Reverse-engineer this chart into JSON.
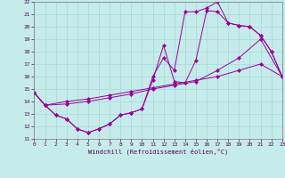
{
  "xlabel": "Windchill (Refroidissement éolien,°C)",
  "xlim": [
    0,
    23
  ],
  "ylim": [
    11,
    22
  ],
  "xticks": [
    0,
    1,
    2,
    3,
    4,
    5,
    6,
    7,
    8,
    9,
    10,
    11,
    12,
    13,
    14,
    15,
    16,
    17,
    18,
    19,
    20,
    21,
    22,
    23
  ],
  "yticks": [
    11,
    12,
    13,
    14,
    15,
    16,
    17,
    18,
    19,
    20,
    21,
    22
  ],
  "bg_color": "#c5ecea",
  "grid_color": "#a8d8d8",
  "line_color": "#990099",
  "curves": [
    {
      "x": [
        0,
        1,
        3,
        5,
        7,
        9,
        11,
        13,
        15,
        17,
        19,
        21,
        23
      ],
      "y": [
        14.7,
        13.7,
        14.0,
        14.2,
        14.5,
        14.8,
        15.1,
        15.4,
        15.7,
        16.0,
        16.5,
        17.0,
        16.0
      ]
    },
    {
      "x": [
        0,
        1,
        3,
        5,
        7,
        9,
        11,
        13,
        15,
        17,
        19,
        21,
        23
      ],
      "y": [
        14.7,
        13.7,
        13.8,
        14.0,
        14.3,
        14.6,
        15.0,
        15.3,
        15.6,
        16.5,
        17.5,
        19.0,
        16.0
      ]
    },
    {
      "x": [
        0,
        1,
        2,
        3,
        4,
        5,
        6,
        7,
        8,
        9,
        10,
        11,
        12,
        13,
        14,
        15,
        16,
        17,
        18,
        19,
        20,
        21,
        22,
        23
      ],
      "y": [
        14.7,
        13.7,
        12.9,
        12.6,
        11.8,
        11.5,
        11.8,
        12.2,
        12.9,
        13.1,
        13.4,
        15.7,
        18.5,
        15.6,
        15.5,
        17.3,
        21.3,
        21.2,
        20.3,
        20.1,
        20.0,
        19.3,
        18.0,
        16.0
      ]
    },
    {
      "x": [
        0,
        1,
        2,
        3,
        4,
        5,
        6,
        7,
        8,
        9,
        10,
        11,
        12,
        13,
        14,
        15,
        16,
        17,
        18,
        19,
        20,
        21,
        22,
        23
      ],
      "y": [
        14.7,
        13.7,
        12.9,
        12.6,
        11.8,
        11.5,
        11.8,
        12.2,
        12.9,
        13.1,
        13.4,
        16.0,
        17.5,
        16.5,
        21.2,
        21.2,
        21.5,
        22.0,
        20.3,
        20.1,
        20.0,
        19.3,
        18.0,
        16.0
      ]
    }
  ]
}
